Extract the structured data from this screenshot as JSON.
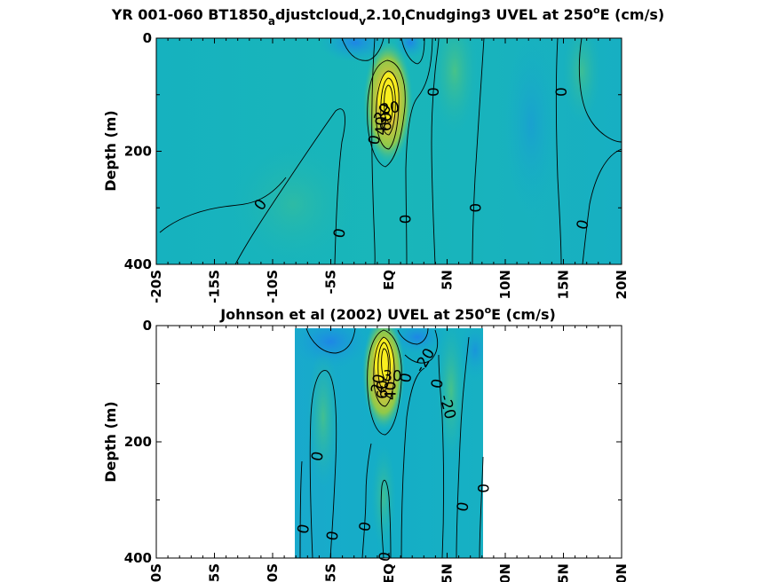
{
  "chart_data": [
    {
      "type": "heatmap",
      "title": "YR 001-060 BT1850_adjustcloud_v2.10_ICnudging3 UVEL at 250°E (cm/s)",
      "title_parts": [
        "YR 001-060 BT1850",
        "a",
        "djustcloud",
        "v",
        "2.10",
        "I",
        "Cnudging3 UVEL at 250",
        "o",
        "E (cm/s)"
      ],
      "ylabel": "Depth (m)",
      "xlabel": "",
      "x_ticklabels": [
        "-20S",
        "-15S",
        "-10S",
        "-5S",
        "EQ",
        "5N",
        "10N",
        "15N",
        "20N"
      ],
      "x_ticks": [
        -20,
        -15,
        -10,
        -5,
        0,
        5,
        10,
        15,
        20
      ],
      "y_ticklabels": [
        "0",
        "200",
        "400"
      ],
      "y_ticks": [
        0,
        200,
        400
      ],
      "xlim": [
        -20,
        20
      ],
      "ylim": [
        400,
        0
      ],
      "data_extent_x": [
        -20,
        20
      ],
      "contour_labels": [
        {
          "text": "0",
          "lat": -11,
          "depth": 295,
          "angle": -55
        },
        {
          "text": "0",
          "lat": -4.2,
          "depth": 345,
          "angle": -80
        },
        {
          "text": "0",
          "lat": -1.2,
          "depth": 180,
          "angle": -80
        },
        {
          "text": "0",
          "lat": 1.5,
          "depth": 320,
          "angle": -90
        },
        {
          "text": "0",
          "lat": 3.9,
          "depth": 95,
          "angle": -90
        },
        {
          "text": "0",
          "lat": 7.5,
          "depth": 300,
          "angle": -90
        },
        {
          "text": "0",
          "lat": 14.9,
          "depth": 95,
          "angle": -90
        },
        {
          "text": "0",
          "lat": 16.7,
          "depth": 330,
          "angle": -75
        },
        {
          "text": "20",
          "lat": 0.1,
          "depth": 125,
          "angle": -10
        },
        {
          "text": "60",
          "lat": -0.2,
          "depth": 148,
          "angle": -90
        },
        {
          "text": "40",
          "lat": -0.6,
          "depth": 155,
          "angle": -90
        },
        {
          "text": "20",
          "lat": -0.5,
          "depth": 133,
          "angle": -60
        }
      ]
    },
    {
      "type": "heatmap",
      "title": "Johnson et al (2002) UVEL at 250°E (cm/s)",
      "title_parts": [
        "Johnson et al (2002) UVEL at 250",
        "o",
        "E (cm/s)"
      ],
      "ylabel": "Depth (m)",
      "xlabel": "",
      "x_ticklabels": [
        "-20S",
        "-15S",
        "-10S",
        "-5S",
        "EQ",
        "5N",
        "10N",
        "15N",
        "20N"
      ],
      "x_ticks": [
        -20,
        -15,
        -10,
        -5,
        0,
        5,
        10,
        15,
        20
      ],
      "y_ticklabels": [
        "0",
        "200",
        "400"
      ],
      "y_ticks": [
        0,
        200,
        400
      ],
      "xlim": [
        -20,
        20
      ],
      "ylim": [
        400,
        0
      ],
      "data_extent_x": [
        -8,
        8.3
      ],
      "contour_labels": [
        {
          "text": "0",
          "lat": -7.3,
          "depth": 350,
          "angle": -80
        },
        {
          "text": "0",
          "lat": -6.1,
          "depth": 225,
          "angle": -80
        },
        {
          "text": "0",
          "lat": -4.8,
          "depth": 362,
          "angle": -80
        },
        {
          "text": "0",
          "lat": -2.0,
          "depth": 346,
          "angle": -80
        },
        {
          "text": "0",
          "lat": -0.3,
          "depth": 398,
          "angle": -80
        },
        {
          "text": "0",
          "lat": 1.5,
          "depth": 90,
          "angle": -80
        },
        {
          "text": "0",
          "lat": 4.2,
          "depth": 100,
          "angle": -80
        },
        {
          "text": "0",
          "lat": 6.4,
          "depth": 312,
          "angle": -80
        },
        {
          "text": "0",
          "lat": 8.2,
          "depth": 280,
          "angle": -90
        },
        {
          "text": "-20",
          "lat": 3.1,
          "depth": 60,
          "angle": -60
        },
        {
          "text": "-20",
          "lat": 5.0,
          "depth": 140,
          "angle": 75
        },
        {
          "text": "30",
          "lat": 0.3,
          "depth": 88,
          "angle": 0
        },
        {
          "text": "20",
          "lat": -0.9,
          "depth": 100,
          "angle": -80
        },
        {
          "text": "60",
          "lat": -0.5,
          "depth": 110,
          "angle": -90
        },
        {
          "text": "40",
          "lat": 0.2,
          "depth": 112,
          "angle": -90
        }
      ]
    }
  ]
}
